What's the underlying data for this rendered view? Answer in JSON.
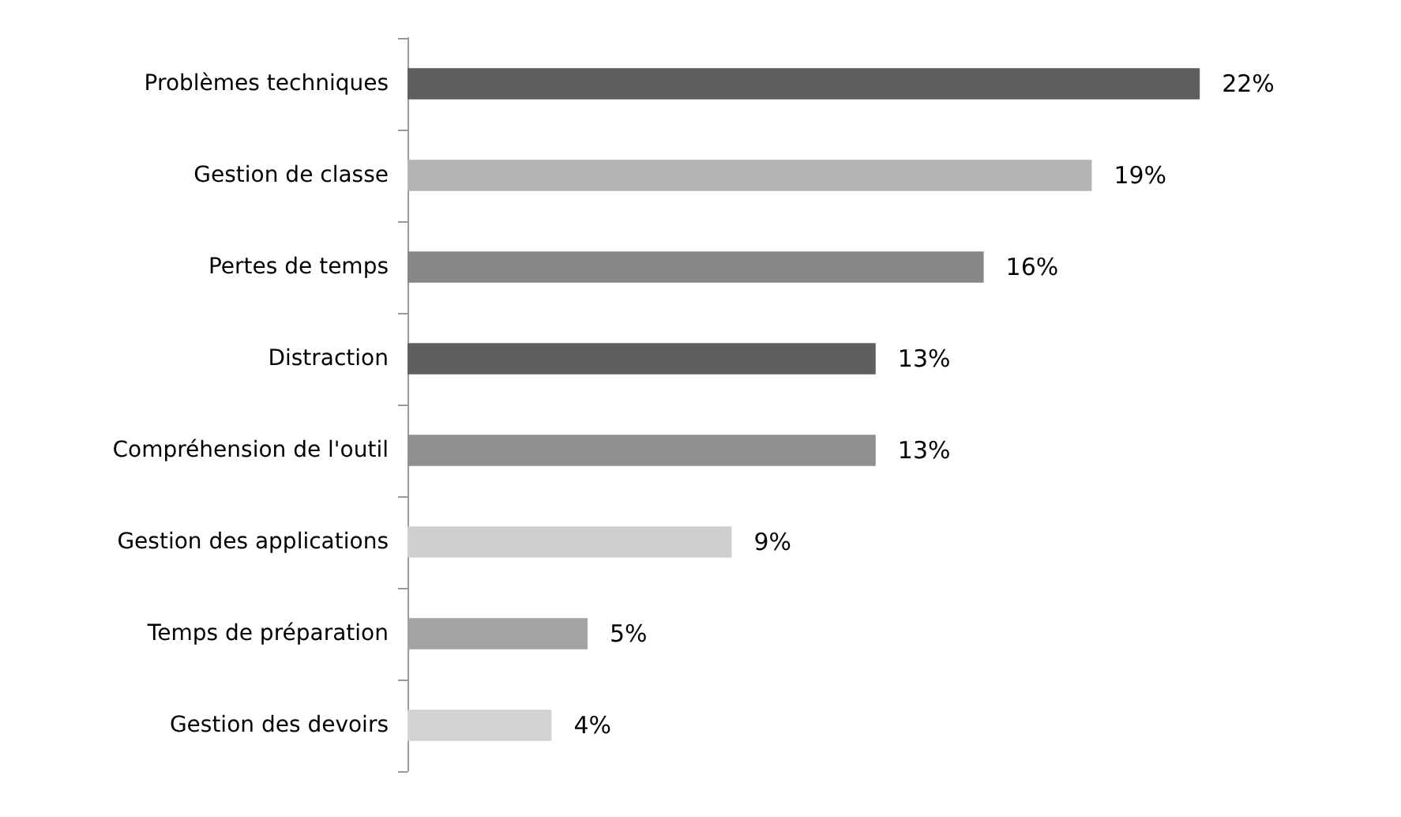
{
  "chart_data": {
    "type": "bar",
    "orientation": "horizontal",
    "categories": [
      "Problèmes techniques",
      "Gestion de classe",
      "Pertes de temps",
      "Distraction",
      "Compréhension de l'outil",
      "Gestion des applications",
      "Temps de préparation",
      "Gestion des devoirs"
    ],
    "values": [
      22,
      19,
      16,
      13,
      13,
      9,
      5,
      4
    ],
    "colors": [
      "#5f5f5f",
      "#b3b3b3",
      "#878787",
      "#5f5f5f",
      "#8f8f8f",
      "#cfcfcf",
      "#a3a3a3",
      "#d3d3d3"
    ],
    "value_labels": [
      "22%",
      "19%",
      "16%",
      "13%",
      "13%",
      "9%",
      "5%",
      "4%"
    ],
    "tick_labels": "y"
  }
}
